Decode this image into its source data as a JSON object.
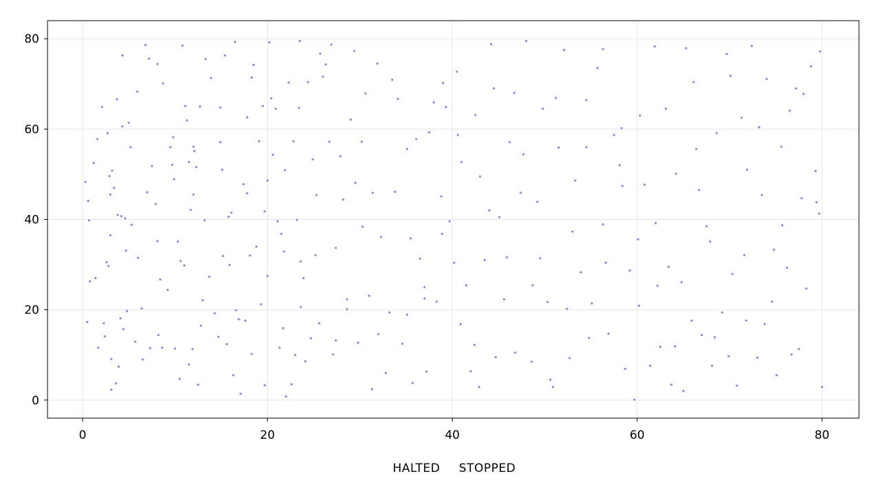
{
  "status": {
    "left": "HALTED",
    "right": "STOPPED"
  },
  "colors": {
    "point": "#8888dd",
    "grid": "#e6e6e6",
    "frame": "#000000",
    "background": "#ffffff"
  },
  "chart_data": {
    "type": "scatter",
    "xlim": [
      -3.8,
      84.0
    ],
    "ylim": [
      -4.0,
      84.0
    ],
    "xticks": [
      0,
      20,
      40,
      60,
      80
    ],
    "yticks": [
      0,
      20,
      40,
      60,
      80
    ],
    "grid": true,
    "legend": "none",
    "points": [
      [
        0.3,
        48.3
      ],
      [
        0.5,
        17.3
      ],
      [
        0.6,
        44.1
      ],
      [
        0.7,
        39.8
      ],
      [
        0.8,
        26.3
      ],
      [
        1.4,
        27.0
      ],
      [
        1.6,
        57.8
      ],
      [
        1.7,
        11.6
      ],
      [
        2.3,
        17.0
      ],
      [
        2.4,
        14.1
      ],
      [
        2.6,
        30.5
      ],
      [
        2.7,
        59.1
      ],
      [
        2.8,
        29.7
      ],
      [
        2.9,
        49.6
      ],
      [
        3.0,
        45.5
      ],
      [
        3.1,
        9.1
      ],
      [
        3.1,
        2.3
      ],
      [
        3.2,
        50.8
      ],
      [
        3.4,
        47.0
      ],
      [
        3.6,
        3.7
      ],
      [
        3.7,
        66.6
      ],
      [
        3.8,
        41.0
      ],
      [
        3.9,
        7.4
      ],
      [
        4.1,
        18.1
      ],
      [
        4.2,
        40.7
      ],
      [
        4.3,
        60.6
      ],
      [
        4.4,
        15.7
      ],
      [
        4.6,
        40.2
      ],
      [
        4.8,
        19.7
      ],
      [
        5.0,
        61.4
      ],
      [
        5.2,
        56.0
      ],
      [
        5.3,
        38.8
      ],
      [
        5.7,
        12.9
      ],
      [
        6.0,
        31.5
      ],
      [
        6.5,
        9.0
      ],
      [
        6.8,
        78.6
      ],
      [
        7.0,
        46.0
      ],
      [
        7.2,
        75.6
      ],
      [
        7.3,
        11.5
      ],
      [
        7.5,
        51.8
      ],
      [
        7.9,
        43.4
      ],
      [
        8.1,
        35.2
      ],
      [
        8.4,
        26.7
      ],
      [
        8.6,
        11.6
      ],
      [
        8.7,
        70.1
      ],
      [
        9.2,
        24.4
      ],
      [
        9.5,
        56.0
      ],
      [
        9.7,
        52.1
      ],
      [
        10.0,
        11.4
      ],
      [
        10.3,
        35.1
      ],
      [
        10.5,
        4.7
      ],
      [
        10.6,
        30.8
      ],
      [
        10.8,
        78.5
      ],
      [
        11.0,
        29.8
      ],
      [
        11.1,
        65.1
      ],
      [
        11.3,
        61.9
      ],
      [
        11.5,
        7.9
      ],
      [
        11.7,
        42.1
      ],
      [
        11.9,
        11.3
      ],
      [
        12.0,
        56.1
      ],
      [
        12.1,
        55.1
      ],
      [
        12.3,
        51.6
      ],
      [
        12.5,
        3.4
      ],
      [
        12.7,
        65.0
      ],
      [
        12.8,
        16.5
      ],
      [
        13.0,
        22.1
      ],
      [
        13.3,
        75.5
      ],
      [
        13.9,
        71.3
      ],
      [
        14.3,
        19.2
      ],
      [
        14.7,
        14.0
      ],
      [
        14.9,
        57.1
      ],
      [
        15.1,
        51.0
      ],
      [
        15.2,
        31.9
      ],
      [
        15.4,
        76.3
      ],
      [
        15.6,
        12.4
      ],
      [
        15.8,
        40.6
      ],
      [
        16.1,
        41.5
      ],
      [
        16.3,
        5.5
      ],
      [
        16.5,
        79.3
      ],
      [
        16.9,
        17.9
      ],
      [
        17.1,
        1.4
      ],
      [
        17.4,
        47.8
      ],
      [
        17.6,
        17.6
      ],
      [
        17.8,
        45.8
      ],
      [
        18.1,
        32.0
      ],
      [
        18.3,
        10.2
      ],
      [
        18.5,
        74.2
      ],
      [
        18.8,
        34.0
      ],
      [
        19.1,
        57.3
      ],
      [
        19.3,
        21.2
      ],
      [
        19.5,
        65.1
      ],
      [
        19.7,
        41.8
      ],
      [
        20.0,
        27.5
      ],
      [
        20.2,
        79.2
      ],
      [
        20.4,
        66.8
      ],
      [
        20.6,
        54.3
      ],
      [
        20.9,
        64.5
      ],
      [
        21.1,
        39.6
      ],
      [
        21.3,
        11.6
      ],
      [
        21.5,
        36.8
      ],
      [
        21.9,
        50.9
      ],
      [
        22.0,
        0.8
      ],
      [
        22.3,
        70.3
      ],
      [
        22.6,
        3.5
      ],
      [
        22.8,
        57.3
      ],
      [
        23.0,
        10.0
      ],
      [
        23.2,
        39.9
      ],
      [
        23.5,
        79.5
      ],
      [
        23.6,
        30.7
      ],
      [
        23.9,
        27.0
      ],
      [
        24.1,
        8.6
      ],
      [
        24.4,
        70.4
      ],
      [
        24.7,
        13.7
      ],
      [
        24.9,
        53.3
      ],
      [
        25.3,
        45.4
      ],
      [
        25.7,
        76.7
      ],
      [
        26.0,
        71.6
      ],
      [
        26.3,
        74.3
      ],
      [
        26.7,
        57.2
      ],
      [
        27.1,
        10.1
      ],
      [
        27.4,
        13.2
      ],
      [
        27.9,
        54.0
      ],
      [
        28.2,
        44.4
      ],
      [
        28.6,
        22.3
      ],
      [
        29.0,
        62.1
      ],
      [
        29.4,
        77.3
      ],
      [
        29.8,
        12.7
      ],
      [
        30.2,
        57.2
      ],
      [
        30.6,
        67.9
      ],
      [
        31.0,
        23.1
      ],
      [
        31.4,
        45.9
      ],
      [
        31.9,
        74.5
      ],
      [
        32.3,
        36.1
      ],
      [
        32.8,
        6.0
      ],
      [
        33.5,
        70.9
      ],
      [
        34.1,
        66.7
      ],
      [
        34.6,
        12.5
      ],
      [
        35.1,
        55.6
      ],
      [
        35.7,
        3.8
      ],
      [
        36.1,
        57.8
      ],
      [
        36.5,
        31.3
      ],
      [
        37.0,
        22.5
      ],
      [
        37.5,
        59.3
      ],
      [
        38.0,
        65.9
      ],
      [
        38.3,
        21.8
      ],
      [
        38.8,
        45.1
      ],
      [
        39.3,
        64.9
      ],
      [
        39.7,
        39.6
      ],
      [
        40.2,
        30.4
      ],
      [
        40.5,
        72.7
      ],
      [
        41.0,
        52.7
      ],
      [
        41.5,
        25.4
      ],
      [
        42.0,
        6.4
      ],
      [
        42.5,
        63.1
      ],
      [
        43.0,
        49.5
      ],
      [
        43.5,
        31.0
      ],
      [
        44.0,
        42.0
      ],
      [
        44.5,
        69.0
      ],
      [
        45.1,
        40.5
      ],
      [
        45.6,
        22.3
      ],
      [
        46.2,
        57.1
      ],
      [
        46.8,
        10.5
      ],
      [
        47.4,
        45.9
      ],
      [
        48.0,
        79.5
      ],
      [
        48.7,
        25.4
      ],
      [
        49.2,
        43.9
      ],
      [
        49.8,
        64.5
      ],
      [
        50.3,
        21.7
      ],
      [
        50.9,
        2.9
      ],
      [
        51.5,
        55.9
      ],
      [
        52.1,
        77.5
      ],
      [
        52.7,
        9.3
      ],
      [
        53.3,
        48.6
      ],
      [
        53.9,
        28.3
      ],
      [
        54.5,
        66.4
      ],
      [
        55.1,
        21.4
      ],
      [
        55.7,
        73.5
      ],
      [
        56.3,
        38.9
      ],
      [
        56.9,
        14.7
      ],
      [
        57.5,
        58.7
      ],
      [
        58.1,
        52.0
      ],
      [
        58.7,
        6.9
      ],
      [
        59.2,
        28.7
      ],
      [
        59.7,
        0.1
      ],
      [
        60.3,
        63.0
      ],
      [
        60.8,
        47.7
      ],
      [
        61.4,
        7.6
      ],
      [
        62.0,
        39.2
      ],
      [
        62.5,
        11.8
      ],
      [
        63.1,
        64.5
      ],
      [
        63.7,
        3.4
      ],
      [
        64.2,
        50.1
      ],
      [
        64.8,
        26.1
      ],
      [
        65.3,
        77.9
      ],
      [
        65.9,
        17.6
      ],
      [
        66.4,
        55.6
      ],
      [
        67.0,
        14.4
      ],
      [
        67.5,
        38.5
      ],
      [
        68.1,
        7.6
      ],
      [
        68.6,
        59.1
      ],
      [
        69.2,
        19.4
      ],
      [
        69.7,
        76.6
      ],
      [
        70.3,
        27.9
      ],
      [
        70.8,
        3.2
      ],
      [
        71.3,
        62.5
      ],
      [
        71.9,
        51.0
      ],
      [
        72.4,
        78.4
      ],
      [
        73.0,
        9.4
      ],
      [
        73.5,
        45.4
      ],
      [
        74.0,
        71.1
      ],
      [
        74.6,
        21.8
      ],
      [
        75.1,
        5.5
      ],
      [
        75.6,
        56.1
      ],
      [
        76.2,
        29.3
      ],
      [
        76.7,
        10.1
      ],
      [
        77.2,
        69.0
      ],
      [
        77.8,
        44.7
      ],
      [
        78.3,
        24.7
      ],
      [
        78.8,
        73.9
      ],
      [
        79.3,
        50.7
      ],
      [
        79.7,
        41.3
      ],
      [
        80.0,
        2.9
      ],
      [
        79.8,
        77.2
      ],
      [
        79.4,
        43.8
      ],
      [
        78.0,
        67.8
      ],
      [
        76.5,
        64.1
      ],
      [
        74.8,
        33.3
      ],
      [
        73.2,
        60.4
      ],
      [
        71.6,
        32.1
      ],
      [
        70.1,
        71.8
      ],
      [
        68.4,
        13.9
      ],
      [
        66.7,
        46.5
      ],
      [
        65.0,
        2.0
      ],
      [
        63.4,
        29.5
      ],
      [
        61.9,
        78.3
      ],
      [
        60.1,
        35.6
      ],
      [
        58.4,
        47.4
      ],
      [
        56.6,
        30.4
      ],
      [
        54.8,
        13.8
      ],
      [
        53.0,
        37.3
      ],
      [
        51.2,
        66.9
      ],
      [
        49.5,
        31.4
      ],
      [
        47.7,
        54.4
      ],
      [
        45.9,
        31.6
      ],
      [
        44.2,
        78.8
      ],
      [
        42.4,
        12.2
      ],
      [
        40.6,
        58.7
      ],
      [
        38.9,
        36.8
      ],
      [
        37.2,
        6.3
      ],
      [
        35.5,
        35.8
      ],
      [
        33.8,
        46.1
      ],
      [
        32.0,
        14.6
      ],
      [
        30.3,
        38.4
      ],
      [
        28.6,
        20.1
      ],
      [
        26.9,
        78.7
      ],
      [
        25.2,
        32.1
      ],
      [
        23.4,
        64.7
      ],
      [
        21.7,
        15.9
      ],
      [
        20.0,
        48.6
      ],
      [
        18.3,
        71.4
      ],
      [
        16.6,
        19.9
      ],
      [
        14.9,
        64.8
      ],
      [
        13.2,
        39.8
      ],
      [
        11.5,
        52.7
      ],
      [
        9.8,
        58.2
      ],
      [
        8.1,
        74.4
      ],
      [
        6.4,
        20.3
      ],
      [
        4.7,
        33.1
      ],
      [
        3.0,
        36.5
      ],
      [
        1.2,
        52.5
      ],
      [
        2.1,
        64.9
      ],
      [
        5.9,
        68.3
      ],
      [
        9.9,
        48.9
      ],
      [
        13.7,
        27.3
      ],
      [
        17.8,
        62.6
      ],
      [
        21.8,
        32.9
      ],
      [
        25.6,
        17.0
      ],
      [
        29.5,
        48.1
      ],
      [
        33.2,
        19.4
      ],
      [
        37.0,
        25.0
      ],
      [
        40.9,
        16.8
      ],
      [
        44.7,
        9.5
      ],
      [
        48.6,
        8.5
      ],
      [
        52.4,
        20.2
      ],
      [
        56.3,
        77.7
      ],
      [
        60.2,
        20.9
      ],
      [
        64.1,
        11.9
      ],
      [
        67.9,
        35.1
      ],
      [
        71.8,
        17.6
      ],
      [
        75.7,
        38.7
      ],
      [
        77.5,
        11.3
      ],
      [
        73.8,
        16.8
      ],
      [
        69.9,
        9.7
      ],
      [
        66.1,
        70.4
      ],
      [
        62.2,
        25.3
      ],
      [
        58.3,
        60.2
      ],
      [
        54.5,
        56.0
      ],
      [
        50.6,
        4.5
      ],
      [
        46.7,
        68.0
      ],
      [
        42.9,
        2.9
      ],
      [
        39.0,
        70.2
      ],
      [
        35.1,
        18.9
      ],
      [
        31.3,
        2.4
      ],
      [
        27.4,
        33.7
      ],
      [
        23.6,
        20.6
      ],
      [
        19.7,
        3.3
      ],
      [
        15.9,
        29.9
      ],
      [
        12.0,
        45.5
      ],
      [
        8.2,
        14.4
      ],
      [
        4.3,
        76.3
      ]
    ]
  }
}
